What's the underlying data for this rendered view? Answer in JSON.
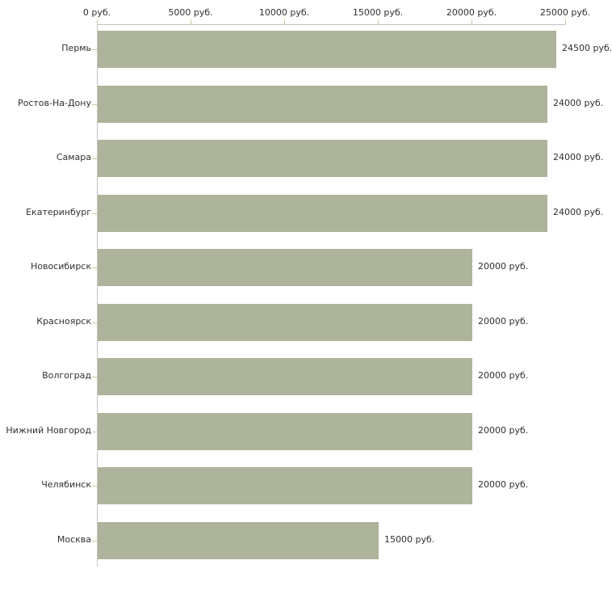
{
  "chart_data": {
    "type": "bar",
    "orientation": "horizontal",
    "title": "",
    "xlabel": "",
    "ylabel": "",
    "unit": "руб.",
    "xlim": [
      0,
      25000
    ],
    "x_ticks": [
      {
        "value": 0,
        "label": "0 руб."
      },
      {
        "value": 5000,
        "label": "5000 руб."
      },
      {
        "value": 10000,
        "label": "10000 руб."
      },
      {
        "value": 15000,
        "label": "15000 руб."
      },
      {
        "value": 20000,
        "label": "20000 руб."
      },
      {
        "value": 25000,
        "label": "25000 руб."
      }
    ],
    "categories": [
      "Пермь",
      "Ростов-На-Дону",
      "Самара",
      "Екатеринбург",
      "Новосибирск",
      "Красноярск",
      "Волгоград",
      "Нижний Новгород",
      "Челябинск",
      "Москва"
    ],
    "values": [
      24500,
      24000,
      24000,
      24000,
      20000,
      20000,
      20000,
      20000,
      20000,
      15000
    ],
    "value_labels": [
      "24500 руб.",
      "24000 руб.",
      "24000 руб.",
      "24000 руб.",
      "20000 руб.",
      "20000 руб.",
      "20000 руб.",
      "20000 руб.",
      "20000 руб.",
      "15000 руб."
    ],
    "legend": null,
    "grid": false,
    "colors": {
      "bar": "#adb49b",
      "axis_line": "#c3c3c3",
      "tick": "#c9c9a0",
      "text": "#303030",
      "background": "#ffffff"
    }
  }
}
